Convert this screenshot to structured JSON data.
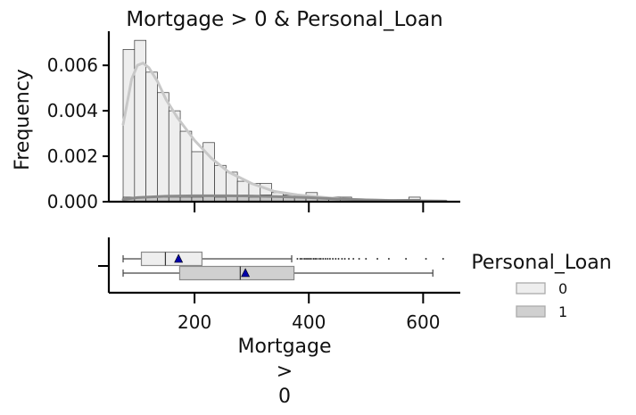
{
  "chart_data": {
    "type": "histogram+boxplot",
    "title": "Mortgage > 0 & Personal_Loan",
    "ylabel": "Frequency",
    "xlabel_lines": [
      "Mortgage",
      ">",
      "0"
    ],
    "xlim": [
      50,
      665
    ],
    "ylim": [
      0,
      0.0075
    ],
    "xticks": [
      200,
      400,
      600
    ],
    "xtick_labels": [
      "200",
      "400",
      "600"
    ],
    "yticks": [
      0,
      0.002,
      0.004,
      0.006
    ],
    "ytick_labels": [
      "0.000",
      "0.002",
      "0.004",
      "0.006"
    ],
    "grid": false,
    "colors": {
      "hist_0": "#eeeeee",
      "hist_1": "#bbbbbb",
      "kde_0": "#c8c8c8",
      "kde_1": "#8a8a8a",
      "box_0": "#eeeeee",
      "box_1": "#d0d0d0",
      "mean_marker": "#0000aa"
    },
    "histogram": {
      "bin_start": 75,
      "bin_width": 20,
      "series": [
        {
          "name": "0",
          "values": [
            0.0067,
            0.0071,
            0.0057,
            0.0048,
            0.004,
            0.0031,
            0.0022,
            0.0026,
            0.0016,
            0.0013,
            0.0009,
            0.0008,
            0.0008,
            0.0004,
            0.0003,
            0.0003,
            0.0004,
            0.0002,
            0.0002,
            0.0001,
            0.0001,
            0.0001,
            0.0001,
            0.0,
            0.0,
            0.0002,
            0.0,
            0.0
          ]
        },
        {
          "name": "1",
          "values": [
            0.0002,
            0.0002,
            0.0002,
            0.0002,
            0.0002,
            0.0002,
            0.0002,
            0.0003,
            0.0002,
            0.0003,
            0.0003,
            0.0002,
            0.0003,
            0.0002,
            0.0002,
            0.0002,
            0.0002,
            0.0002,
            0.0002,
            0.0002,
            0.0001,
            0.0001,
            0.0001,
            0.0001,
            0.0001,
            0.0001,
            0.0,
            0.0
          ]
        }
      ],
      "kde": [
        {
          "name": "0",
          "x": [
            75,
            90,
            100,
            110,
            120,
            135,
            150,
            170,
            200,
            230,
            260,
            300,
            340,
            380,
            420,
            460,
            500,
            560,
            640
          ],
          "y": [
            0.0034,
            0.0054,
            0.006,
            0.0061,
            0.0059,
            0.0053,
            0.0045,
            0.0037,
            0.0027,
            0.0019,
            0.0013,
            0.0008,
            0.00045,
            0.0003,
            0.0002,
            0.00012,
            8e-05,
            5e-05,
            3e-05
          ]
        },
        {
          "name": "1",
          "x": [
            75,
            100,
            150,
            200,
            250,
            300,
            350,
            400,
            450,
            500,
            550,
            600,
            640
          ],
          "y": [
            0.0001,
            0.00018,
            0.00024,
            0.00026,
            0.00026,
            0.00025,
            0.00022,
            0.00018,
            0.00012,
            8e-05,
            5e-05,
            3e-05,
            2e-05
          ]
        }
      ]
    },
    "boxplot": {
      "series": [
        {
          "name": "0",
          "whisker_low": 75,
          "q1": 107,
          "median": 149,
          "q3": 213,
          "whisker_high": 370,
          "mean": 172,
          "outliers": [
            380,
            385,
            388,
            392,
            395,
            398,
            401,
            404,
            408,
            411,
            414,
            418,
            421,
            425,
            429,
            433,
            437,
            442,
            447,
            452,
            458,
            463,
            470,
            478,
            488,
            500,
            520,
            540,
            570,
            605,
            635
          ]
        },
        {
          "name": "1",
          "whisker_low": 75,
          "q1": 174,
          "median": 280,
          "q3": 374,
          "whisker_high": 617,
          "mean": 289,
          "outliers": []
        }
      ]
    },
    "legend": {
      "title": "Personal_Loan",
      "placement": "right",
      "entries": [
        "0",
        "1"
      ]
    }
  }
}
